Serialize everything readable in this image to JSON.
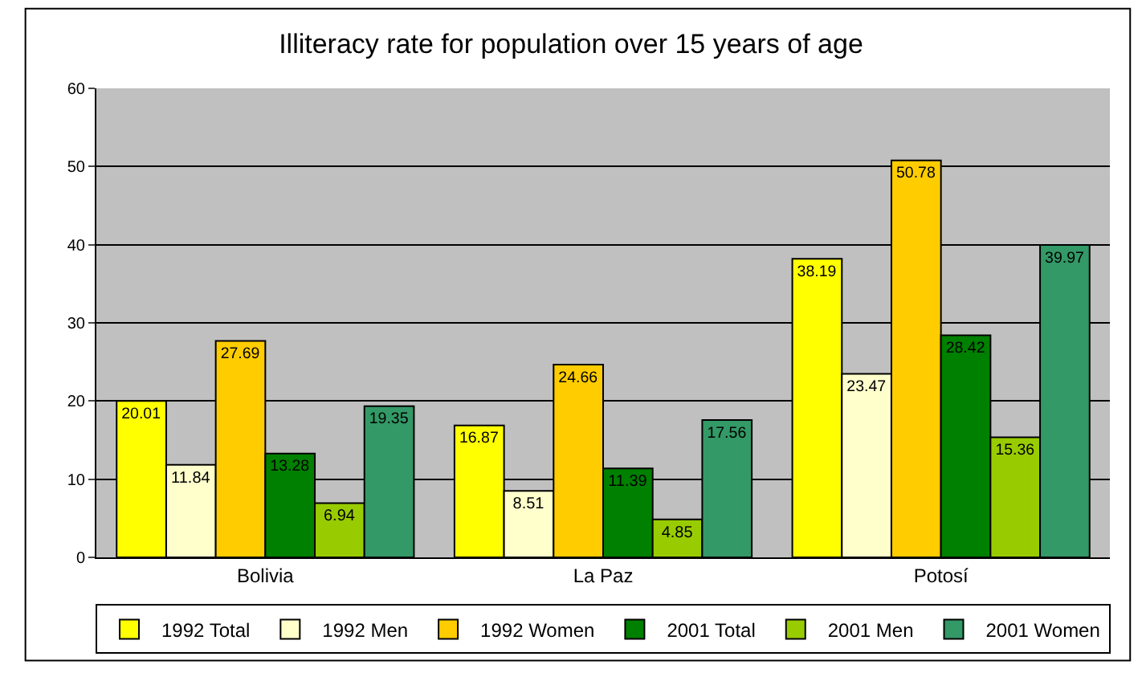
{
  "chart_data": {
    "type": "bar",
    "title": "Illiteracy rate for population over 15 years of age",
    "categories": [
      "Bolivia",
      "La Paz",
      "Potosí"
    ],
    "series": [
      {
        "name": "1992 Total",
        "color": "#ffff00",
        "values": [
          20.01,
          16.87,
          38.19
        ]
      },
      {
        "name": "1992 Men",
        "color": "#ffffcc",
        "values": [
          11.84,
          8.51,
          23.47
        ]
      },
      {
        "name": "1992 Women",
        "color": "#ffcc00",
        "values": [
          27.69,
          24.66,
          50.78
        ]
      },
      {
        "name": "2001 Total",
        "color": "#008000",
        "values": [
          13.28,
          11.39,
          28.42
        ]
      },
      {
        "name": "2001 Men",
        "color": "#99cc00",
        "values": [
          6.94,
          4.85,
          15.36
        ]
      },
      {
        "name": "2001 Women",
        "color": "#339966",
        "values": [
          19.35,
          17.56,
          39.97
        ]
      }
    ],
    "ylim": [
      0,
      60
    ],
    "yticks": [
      0,
      10,
      20,
      30,
      40,
      50,
      60
    ],
    "grid": "y",
    "legend": "bottom",
    "data_labels": true
  }
}
